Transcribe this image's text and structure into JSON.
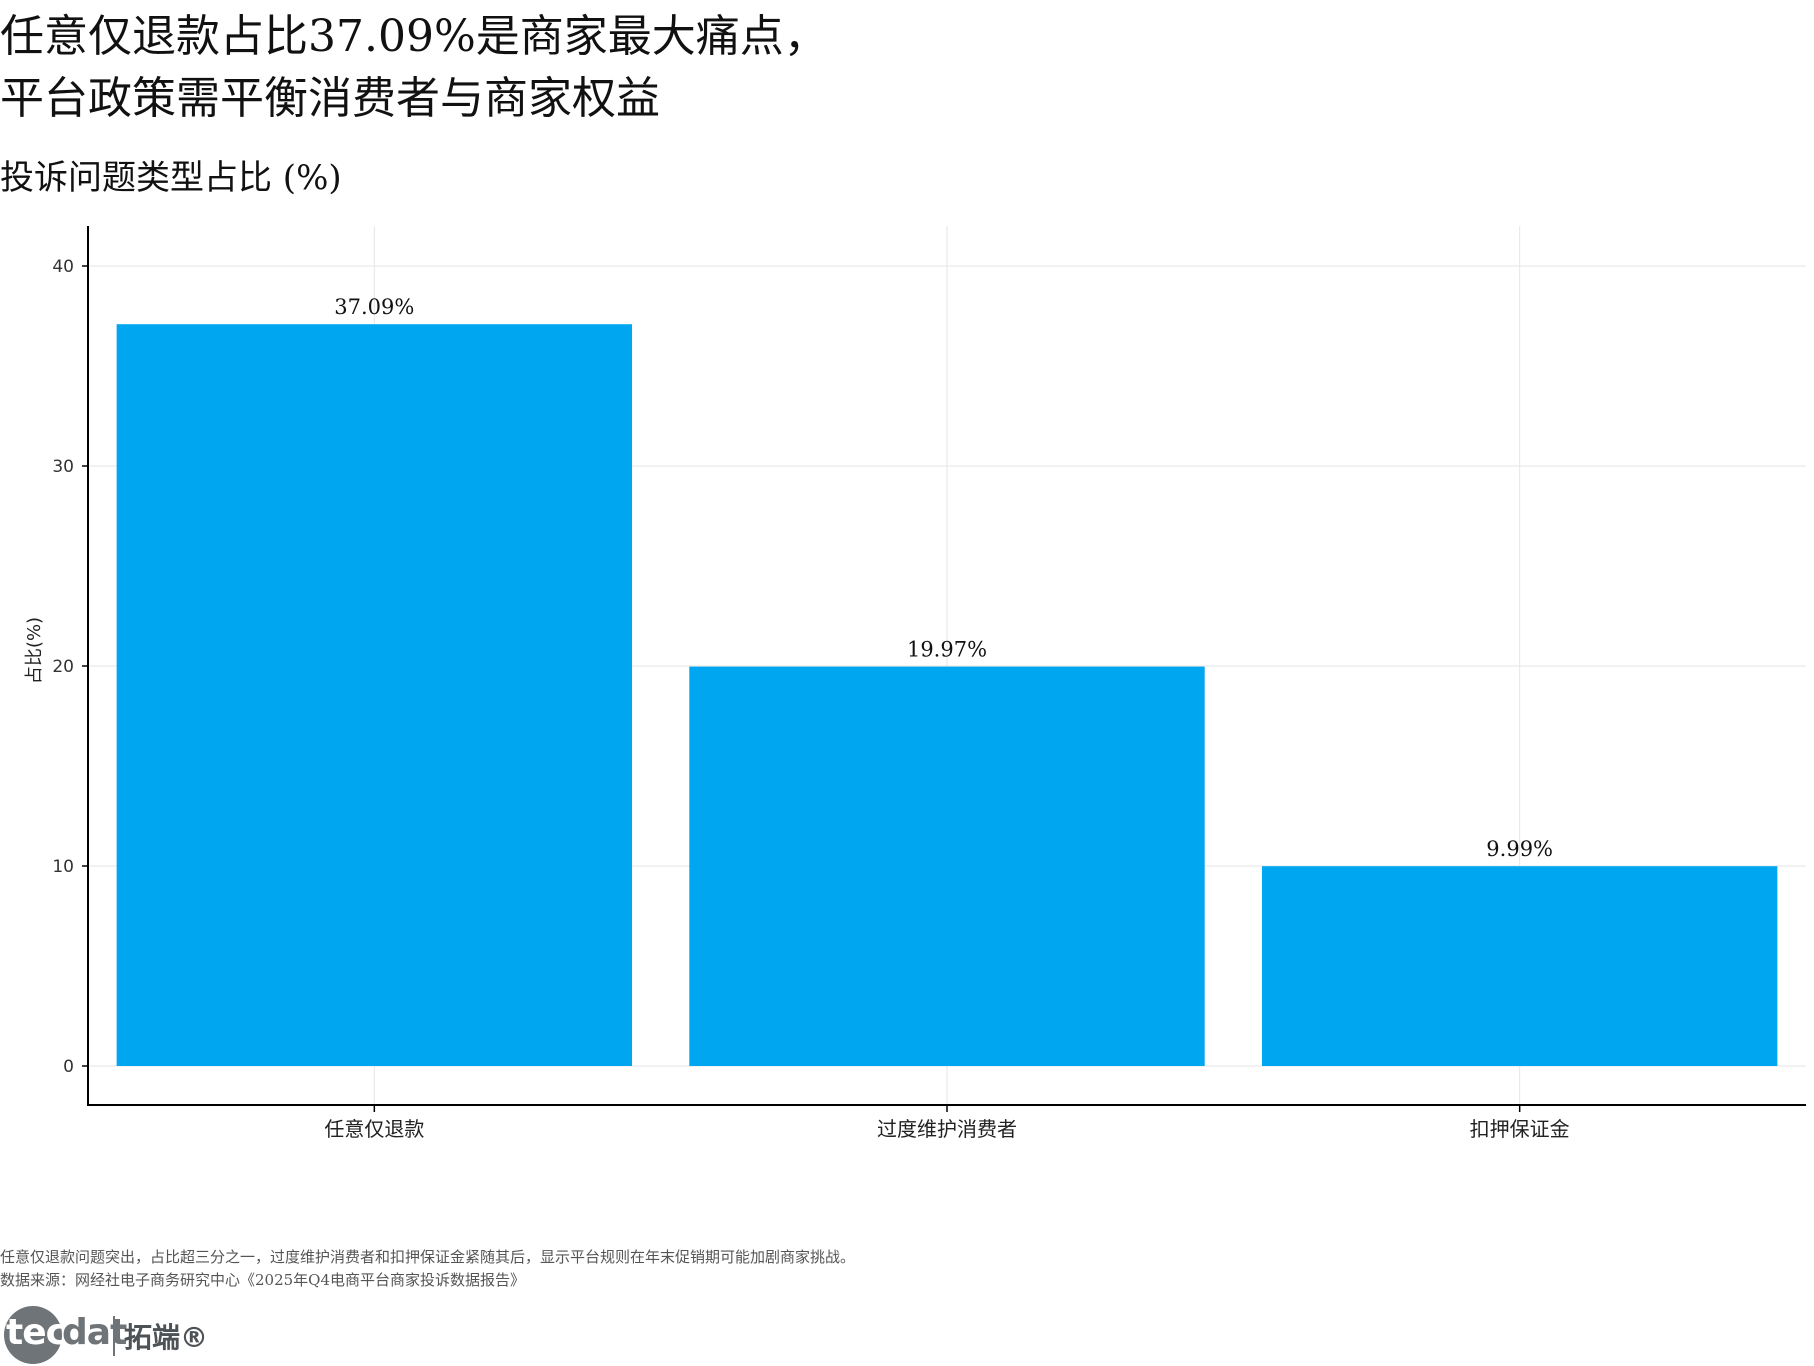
{
  "title_lines": [
    "任意仅退款占比37.09%是商家最大痛点，",
    "平台政策需平衡消费者与商家权益"
  ],
  "subtitle": "投诉问题类型占比 (%)",
  "notes": {
    "line1": "任意仅退款问题突出，占比超三分之一，过度维护消费者和扣押保证金紧随其后，显示平台规则在年末促销期可能加剧商家挑战。",
    "line2": "数据来源：网经社电子商务研究中心《2025年Q4电商平台商家投诉数据报告》"
  },
  "logo": {
    "tec": "tec",
    "dat": "dat",
    "cn": "拓端®"
  },
  "colors": {
    "bar": "#00a6f0",
    "grid": "#e6e6e6",
    "axis": "#000000"
  },
  "chart_data": {
    "type": "bar",
    "categories": [
      "任意仅退款",
      "过度维护消费者",
      "扣押保证金"
    ],
    "values": [
      37.09,
      19.97,
      9.99
    ],
    "data_labels": [
      "37.09%",
      "19.97%",
      "9.99%"
    ],
    "ylabel": "占比(%)",
    "ylim": [
      0,
      42
    ],
    "yticks": [
      0,
      10,
      20,
      30,
      40
    ],
    "ytick_labels": [
      "0",
      "10",
      "20",
      "30",
      "40"
    ],
    "grid": true
  }
}
